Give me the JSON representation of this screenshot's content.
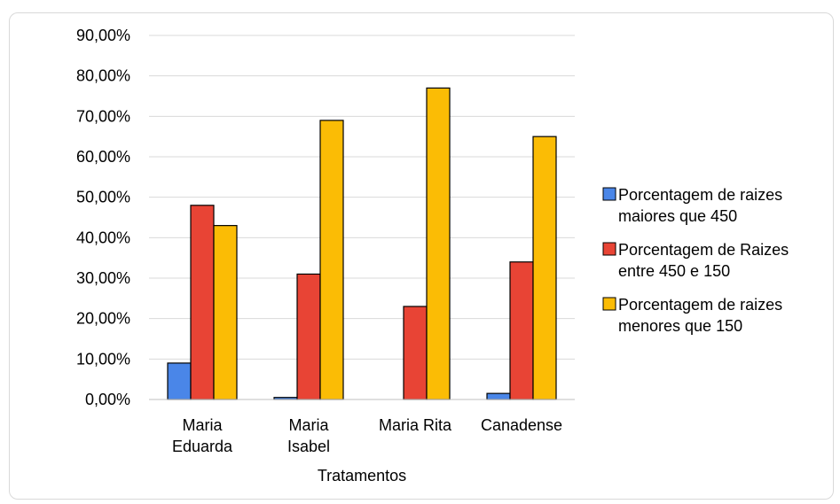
{
  "chart_data": {
    "type": "bar",
    "xlabel": "Tratamentos",
    "ylabel": "",
    "ylim": [
      0,
      0.9
    ],
    "yticks": [
      "0,00%",
      "10,00%",
      "20,00%",
      "30,00%",
      "40,00%",
      "50,00%",
      "60,00%",
      "70,00%",
      "80,00%",
      "90,00%"
    ],
    "categories": [
      [
        "Maria",
        "Eduarda"
      ],
      [
        "Maria",
        "Isabel"
      ],
      [
        "Maria Rita"
      ],
      [
        "Canadense"
      ]
    ],
    "series": [
      {
        "name": [
          "Porcentagem de raizes",
          "maiores que 450"
        ],
        "color": "#4a86e8",
        "values": [
          0.09,
          0.005,
          0.0,
          0.015
        ]
      },
      {
        "name": [
          "Porcentagem de Raizes",
          "entre 450 e 150"
        ],
        "color": "#e84435",
        "values": [
          0.48,
          0.31,
          0.23,
          0.34
        ]
      },
      {
        "name": [
          "Porcentagem de raizes",
          "menores que 150"
        ],
        "color": "#fbbc05",
        "values": [
          0.43,
          0.69,
          0.77,
          0.65
        ]
      }
    ],
    "grid": true,
    "legend_position": "right"
  }
}
